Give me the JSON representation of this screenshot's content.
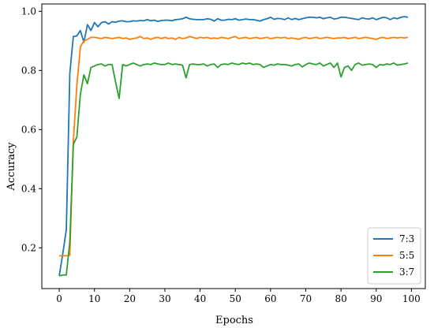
{
  "chart_data": {
    "type": "line",
    "title": "",
    "xlabel": "Epochs",
    "ylabel": "Accuracy",
    "xlim": [
      -4.95,
      103.95
    ],
    "ylim": [
      0.062,
      1.025
    ],
    "xticks": [
      0,
      10,
      20,
      30,
      40,
      50,
      60,
      70,
      80,
      90,
      100
    ],
    "xtick_labels": [
      "0",
      "10",
      "20",
      "30",
      "40",
      "50",
      "60",
      "70",
      "80",
      "90",
      "100"
    ],
    "yticks": [
      0.2,
      0.4,
      0.6,
      0.8,
      1.0
    ],
    "ytick_labels": [
      "0.2",
      "0.4",
      "0.6",
      "0.8",
      "1.0"
    ],
    "grid": false,
    "legend": "bottom-right",
    "x": [
      0,
      1,
      2,
      3,
      4,
      5,
      6,
      7,
      8,
      9,
      10,
      11,
      12,
      13,
      14,
      15,
      16,
      17,
      18,
      19,
      20,
      21,
      22,
      23,
      24,
      25,
      26,
      27,
      28,
      29,
      30,
      31,
      32,
      33,
      34,
      35,
      36,
      37,
      38,
      39,
      40,
      41,
      42,
      43,
      44,
      45,
      46,
      47,
      48,
      49,
      50,
      51,
      52,
      53,
      54,
      55,
      56,
      57,
      58,
      59,
      60,
      61,
      62,
      63,
      64,
      65,
      66,
      67,
      68,
      69,
      70,
      71,
      72,
      73,
      74,
      75,
      76,
      77,
      78,
      79,
      80,
      81,
      82,
      83,
      84,
      85,
      86,
      87,
      88,
      89,
      90,
      91,
      92,
      93,
      94,
      95,
      96,
      97,
      98,
      99
    ],
    "series": [
      {
        "name": "7:3",
        "color": "#1f77b4",
        "values": [
          0.105,
          0.18,
          0.26,
          0.79,
          0.915,
          0.917,
          0.935,
          0.895,
          0.955,
          0.935,
          0.962,
          0.948,
          0.962,
          0.965,
          0.957,
          0.965,
          0.963,
          0.967,
          0.968,
          0.965,
          0.965,
          0.968,
          0.967,
          0.969,
          0.968,
          0.972,
          0.968,
          0.97,
          0.966,
          0.969,
          0.97,
          0.97,
          0.968,
          0.972,
          0.973,
          0.975,
          0.98,
          0.975,
          0.973,
          0.972,
          0.972,
          0.972,
          0.975,
          0.973,
          0.967,
          0.975,
          0.97,
          0.97,
          0.973,
          0.972,
          0.975,
          0.97,
          0.972,
          0.974,
          0.972,
          0.972,
          0.97,
          0.967,
          0.972,
          0.975,
          0.98,
          0.973,
          0.976,
          0.975,
          0.972,
          0.978,
          0.972,
          0.976,
          0.972,
          0.975,
          0.978,
          0.98,
          0.98,
          0.978,
          0.98,
          0.975,
          0.978,
          0.98,
          0.974,
          0.976,
          0.98,
          0.98,
          0.978,
          0.976,
          0.974,
          0.972,
          0.978,
          0.975,
          0.974,
          0.978,
          0.972,
          0.976,
          0.98,
          0.978,
          0.972,
          0.978,
          0.975,
          0.98,
          0.982,
          0.98
        ]
      },
      {
        "name": "5:5",
        "color": "#ff7f0e",
        "values": [
          0.173,
          0.173,
          0.173,
          0.175,
          0.56,
          0.75,
          0.88,
          0.9,
          0.905,
          0.912,
          0.912,
          0.91,
          0.908,
          0.912,
          0.91,
          0.908,
          0.91,
          0.912,
          0.908,
          0.91,
          0.905,
          0.908,
          0.91,
          0.915,
          0.908,
          0.91,
          0.905,
          0.91,
          0.912,
          0.908,
          0.912,
          0.908,
          0.91,
          0.905,
          0.912,
          0.908,
          0.91,
          0.915,
          0.912,
          0.908,
          0.912,
          0.91,
          0.912,
          0.908,
          0.91,
          0.908,
          0.912,
          0.91,
          0.908,
          0.912,
          0.915,
          0.908,
          0.91,
          0.912,
          0.908,
          0.91,
          0.912,
          0.908,
          0.91,
          0.912,
          0.908,
          0.91,
          0.912,
          0.91,
          0.912,
          0.908,
          0.91,
          0.908,
          0.905,
          0.91,
          0.912,
          0.908,
          0.91,
          0.912,
          0.908,
          0.91,
          0.912,
          0.91,
          0.908,
          0.91,
          0.91,
          0.912,
          0.908,
          0.91,
          0.912,
          0.908,
          0.91,
          0.912,
          0.91,
          0.908,
          0.905,
          0.91,
          0.912,
          0.908,
          0.91,
          0.912,
          0.91,
          0.912,
          0.91,
          0.912
        ]
      },
      {
        "name": "3:7",
        "color": "#2ca02c",
        "values": [
          0.105,
          0.108,
          0.108,
          0.22,
          0.55,
          0.575,
          0.72,
          0.785,
          0.755,
          0.81,
          0.815,
          0.82,
          0.822,
          0.815,
          0.82,
          0.82,
          0.76,
          0.705,
          0.82,
          0.815,
          0.82,
          0.825,
          0.82,
          0.815,
          0.82,
          0.822,
          0.82,
          0.825,
          0.822,
          0.82,
          0.82,
          0.825,
          0.82,
          0.822,
          0.82,
          0.818,
          0.775,
          0.82,
          0.822,
          0.82,
          0.82,
          0.822,
          0.815,
          0.82,
          0.822,
          0.81,
          0.82,
          0.822,
          0.82,
          0.825,
          0.822,
          0.82,
          0.825,
          0.822,
          0.825,
          0.82,
          0.822,
          0.82,
          0.81,
          0.815,
          0.82,
          0.818,
          0.822,
          0.82,
          0.82,
          0.818,
          0.815,
          0.82,
          0.822,
          0.812,
          0.82,
          0.825,
          0.822,
          0.82,
          0.825,
          0.815,
          0.82,
          0.825,
          0.81,
          0.825,
          0.778,
          0.81,
          0.815,
          0.8,
          0.82,
          0.825,
          0.818,
          0.82,
          0.822,
          0.82,
          0.81,
          0.82,
          0.818,
          0.822,
          0.82,
          0.825,
          0.818,
          0.82,
          0.822,
          0.825
        ]
      }
    ]
  }
}
